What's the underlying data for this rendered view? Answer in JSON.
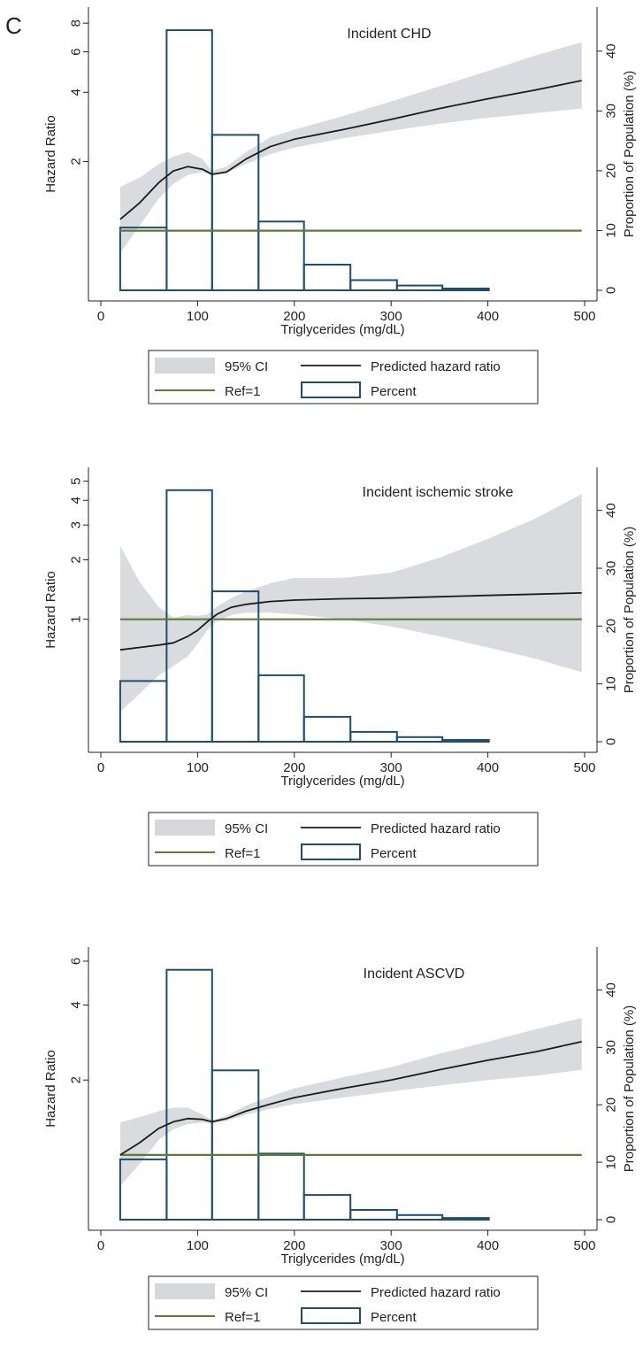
{
  "panel_label": "C",
  "colors": {
    "ci_fill": "#d6d7da",
    "hr_line": "#1c1c1c",
    "ref_line": "#5c7a38",
    "bar_stroke": "#1d4e6e",
    "axis": "#222222"
  },
  "legend": {
    "ci": "95% CI",
    "hr": "Predicted hazard ratio",
    "ref": "Ref=1",
    "pct": "Percent"
  },
  "chart_data": [
    {
      "type": "line",
      "title": "Incident CHD",
      "xlabel": "Triglycerides (mg/dL)",
      "ylabel": "Hazard Ratio",
      "y2label": "Proportion of Population (%)",
      "xlim": [
        0,
        500
      ],
      "x_ticks": [
        0,
        100,
        200,
        300,
        400,
        500
      ],
      "y_scale": "log",
      "y_ticks": [
        2,
        4,
        6,
        8
      ],
      "y2_ticks": [
        0,
        10,
        20,
        30,
        40
      ],
      "y2lim": [
        0,
        45
      ],
      "histogram": {
        "bin_edges": [
          20,
          68,
          115,
          163,
          210,
          258,
          306,
          353,
          401
        ],
        "percent": [
          10.5,
          43.5,
          26,
          11.5,
          4.3,
          1.7,
          0.8,
          0.3
        ]
      },
      "hazard_ratio": {
        "x": [
          20,
          40,
          60,
          75,
          90,
          105,
          115,
          130,
          150,
          175,
          200,
          250,
          300,
          350,
          400,
          450,
          497
        ],
        "y": [
          1.12,
          1.32,
          1.62,
          1.82,
          1.9,
          1.85,
          1.76,
          1.8,
          2.05,
          2.32,
          2.5,
          2.75,
          3.05,
          3.4,
          3.75,
          4.1,
          4.5
        ]
      },
      "ci_lower": [
        0.8,
        1.05,
        1.38,
        1.6,
        1.75,
        1.8,
        1.73,
        1.78,
        1.95,
        2.15,
        2.3,
        2.52,
        2.72,
        2.92,
        3.1,
        3.25,
        3.4
      ],
      "ci_upper": [
        1.55,
        1.7,
        1.95,
        2.1,
        2.2,
        2.05,
        1.82,
        1.9,
        2.2,
        2.55,
        2.75,
        3.15,
        3.65,
        4.25,
        4.95,
        5.8,
        6.6
      ],
      "reference": 1
    },
    {
      "type": "line",
      "title": "Incident ischemic stroke",
      "xlabel": "Triglycerides (mg/dL)",
      "ylabel": "Hazard Ratio",
      "y2label": "Proportion of Population (%)",
      "xlim": [
        0,
        500
      ],
      "x_ticks": [
        0,
        100,
        200,
        300,
        400,
        500
      ],
      "y_scale": "log",
      "y_ticks": [
        1,
        2,
        3,
        4,
        5
      ],
      "y2_ticks": [
        0,
        10,
        20,
        30,
        40
      ],
      "y2lim": [
        0,
        45
      ],
      "histogram": {
        "bin_edges": [
          20,
          68,
          115,
          163,
          210,
          258,
          306,
          353,
          401
        ],
        "percent": [
          10.5,
          43.5,
          26,
          11.5,
          4.3,
          1.7,
          0.8,
          0.3
        ]
      },
      "hazard_ratio": {
        "x": [
          20,
          40,
          60,
          75,
          90,
          100,
          110,
          120,
          135,
          150,
          175,
          200,
          250,
          300,
          350,
          400,
          450,
          497
        ],
        "y": [
          0.7,
          0.72,
          0.74,
          0.76,
          0.82,
          0.88,
          0.97,
          1.06,
          1.15,
          1.19,
          1.23,
          1.25,
          1.27,
          1.28,
          1.3,
          1.32,
          1.34,
          1.36
        ]
      },
      "ci_lower": [
        0.34,
        0.42,
        0.52,
        0.58,
        0.65,
        0.75,
        0.88,
        0.98,
        1.05,
        1.08,
        1.08,
        1.06,
        1.0,
        0.92,
        0.82,
        0.72,
        0.63,
        0.54
      ],
      "ci_upper": [
        2.35,
        1.55,
        1.15,
        1.02,
        1.05,
        1.04,
        1.06,
        1.16,
        1.28,
        1.38,
        1.52,
        1.62,
        1.62,
        1.72,
        2.05,
        2.55,
        3.25,
        4.3
      ],
      "reference": 1
    },
    {
      "type": "line",
      "title": "Incident ASCVD",
      "xlabel": "Triglycerides (mg/dL)",
      "ylabel": "Hazard Ratio",
      "y2label": "Proportion of Population (%)",
      "xlim": [
        0,
        500
      ],
      "x_ticks": [
        0,
        100,
        200,
        300,
        400,
        500
      ],
      "y_scale": "log",
      "y_ticks": [
        2,
        4,
        6
      ],
      "y2_ticks": [
        0,
        10,
        20,
        30,
        40
      ],
      "y2lim": [
        0,
        45
      ],
      "histogram": {
        "bin_edges": [
          20,
          68,
          115,
          163,
          210,
          258,
          306,
          353,
          401
        ],
        "percent": [
          10.5,
          43.5,
          26,
          11.5,
          4.3,
          1.7,
          0.8,
          0.3
        ]
      },
      "hazard_ratio": {
        "x": [
          20,
          40,
          60,
          75,
          90,
          105,
          115,
          130,
          150,
          175,
          200,
          250,
          300,
          350,
          400,
          450,
          497
        ],
        "y": [
          1.0,
          1.12,
          1.28,
          1.36,
          1.4,
          1.39,
          1.36,
          1.4,
          1.5,
          1.6,
          1.7,
          1.85,
          2.0,
          2.2,
          2.4,
          2.6,
          2.85
        ]
      },
      "ci_lower": [
        0.75,
        0.92,
        1.15,
        1.27,
        1.33,
        1.35,
        1.34,
        1.37,
        1.45,
        1.53,
        1.6,
        1.7,
        1.8,
        1.9,
        2.0,
        2.08,
        2.2
      ],
      "ci_upper": [
        1.35,
        1.42,
        1.5,
        1.55,
        1.55,
        1.45,
        1.38,
        1.44,
        1.58,
        1.72,
        1.85,
        2.05,
        2.25,
        2.55,
        2.85,
        3.2,
        3.55
      ],
      "reference": 1
    }
  ]
}
